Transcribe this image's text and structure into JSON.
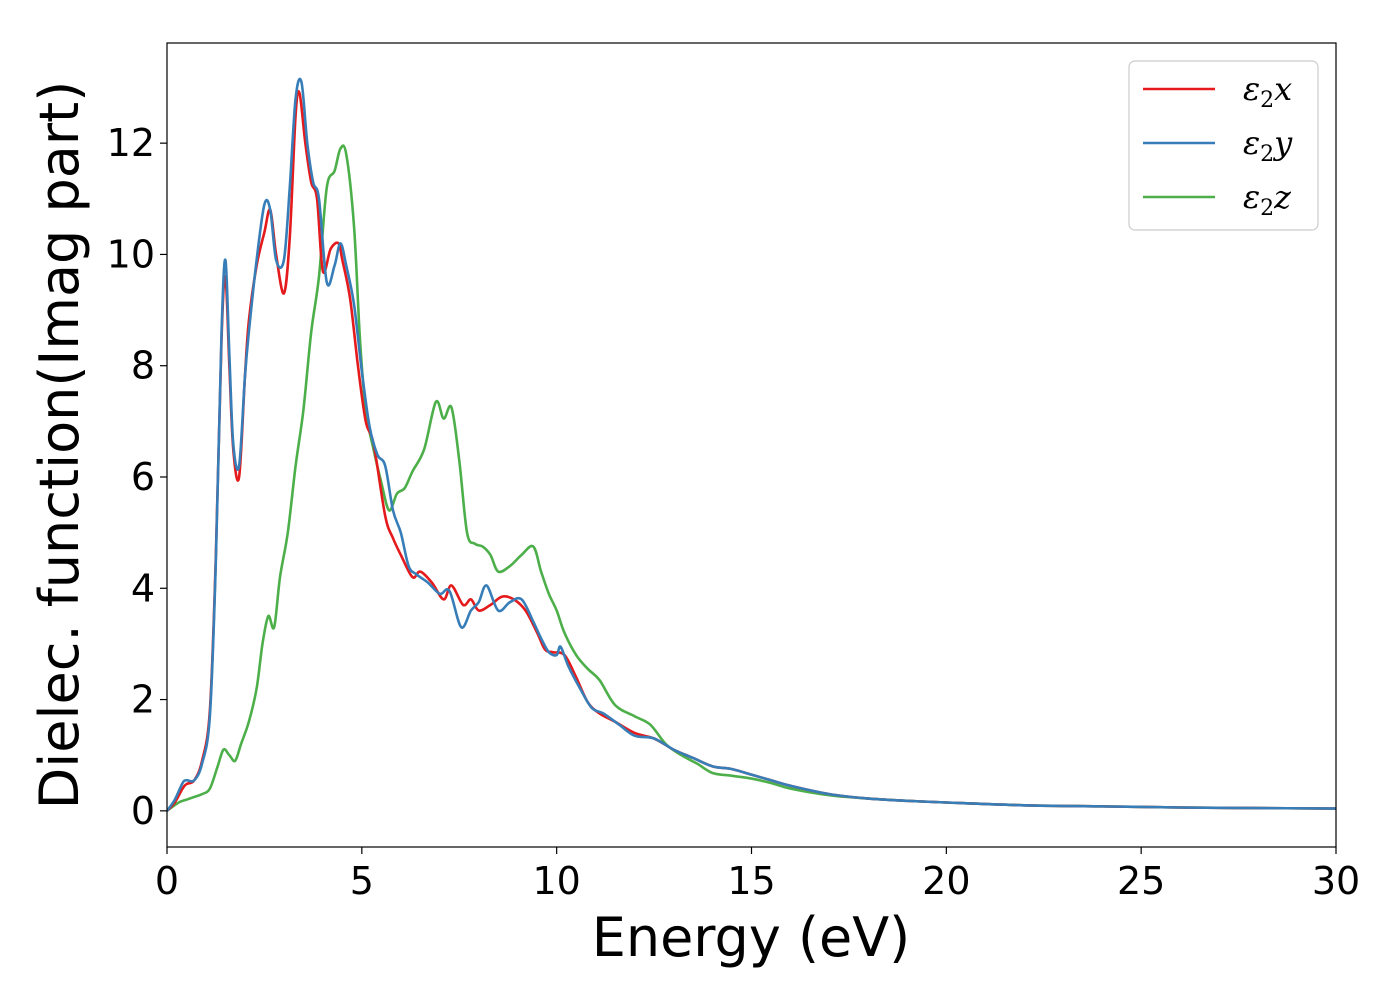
{
  "chart_data": {
    "type": "line",
    "title": "",
    "xlabel": "Energy (eV)",
    "ylabel": "Dielec. function(Imag part)",
    "xlim": [
      0,
      30
    ],
    "ylim": [
      -0.65,
      13.8
    ],
    "xticks": [
      0,
      5,
      10,
      15,
      20,
      25,
      30
    ],
    "xtick_labels": [
      "0",
      "5",
      "10",
      "15",
      "20",
      "25",
      "30"
    ],
    "yticks": [
      0,
      2,
      4,
      6,
      8,
      10,
      12
    ],
    "ytick_labels": [
      "0",
      "2",
      "4",
      "6",
      "8",
      "10",
      "12"
    ],
    "grid": false,
    "legend_position": "top-right",
    "series": [
      {
        "name": "ε2x",
        "legend_symbol": "ε",
        "legend_sub": "2",
        "legend_var": "x",
        "color": "#e41a1c",
        "x": [
          0,
          0.2,
          0.4,
          0.5,
          0.7,
          0.9,
          1.1,
          1.25,
          1.4,
          1.5,
          1.6,
          1.7,
          1.85,
          2.0,
          2.1,
          2.3,
          2.5,
          2.65,
          2.8,
          3.0,
          3.15,
          3.3,
          3.4,
          3.55,
          3.7,
          3.85,
          4.0,
          4.2,
          4.4,
          4.5,
          4.7,
          4.9,
          5.1,
          5.3,
          5.6,
          5.8,
          6.0,
          6.3,
          6.5,
          6.8,
          7.1,
          7.3,
          7.6,
          7.8,
          8.0,
          8.3,
          8.6,
          8.9,
          9.2,
          9.5,
          9.7,
          9.9,
          10.2,
          10.5,
          10.8,
          11.1,
          11.5,
          12.0,
          12.5,
          13.0,
          13.5,
          14.0,
          14.5,
          15.0,
          15.5,
          16.0,
          17.0,
          18.0,
          19.0,
          20.0,
          22.0,
          24.0,
          26.0,
          28.0,
          30.0
        ],
        "values": [
          0.0,
          0.15,
          0.4,
          0.48,
          0.55,
          0.9,
          1.8,
          4.5,
          8.5,
          9.6,
          8.0,
          6.5,
          6.0,
          7.8,
          8.8,
          9.8,
          10.4,
          10.8,
          10.0,
          9.3,
          10.3,
          12.5,
          12.9,
          12.0,
          11.3,
          11.0,
          9.7,
          10.1,
          10.2,
          9.9,
          9.2,
          8.0,
          7.0,
          6.6,
          5.3,
          4.9,
          4.6,
          4.2,
          4.3,
          4.1,
          3.8,
          4.05,
          3.7,
          3.8,
          3.6,
          3.7,
          3.85,
          3.8,
          3.6,
          3.2,
          2.9,
          2.85,
          2.8,
          2.4,
          1.95,
          1.75,
          1.6,
          1.4,
          1.3,
          1.1,
          0.95,
          0.8,
          0.75,
          0.65,
          0.55,
          0.45,
          0.3,
          0.22,
          0.18,
          0.15,
          0.1,
          0.08,
          0.06,
          0.05,
          0.04
        ]
      },
      {
        "name": "ε2y",
        "legend_symbol": "ε",
        "legend_sub": "2",
        "legend_var": "y",
        "color": "#377eb8",
        "x": [
          0,
          0.2,
          0.4,
          0.5,
          0.7,
          0.9,
          1.1,
          1.25,
          1.4,
          1.5,
          1.6,
          1.7,
          1.85,
          2.0,
          2.1,
          2.3,
          2.5,
          2.65,
          2.8,
          3.0,
          3.15,
          3.3,
          3.45,
          3.6,
          3.75,
          3.9,
          4.1,
          4.3,
          4.45,
          4.6,
          4.8,
          5.0,
          5.2,
          5.4,
          5.6,
          5.8,
          6.0,
          6.2,
          6.4,
          6.7,
          7.0,
          7.25,
          7.55,
          7.8,
          8.0,
          8.2,
          8.5,
          8.8,
          9.1,
          9.4,
          9.6,
          9.8,
          10.0,
          10.1,
          10.3,
          10.6,
          10.9,
          11.2,
          11.6,
          12.0,
          12.5,
          13.0,
          13.5,
          14.0,
          14.5,
          15.0,
          15.5,
          16.0,
          17.0,
          18.0,
          19.0,
          20.0,
          22.0,
          24.0,
          26.0,
          28.0,
          30.0
        ],
        "values": [
          0.0,
          0.2,
          0.5,
          0.55,
          0.55,
          0.85,
          1.7,
          4.4,
          8.6,
          9.9,
          8.2,
          6.6,
          6.2,
          7.8,
          8.6,
          9.9,
          10.9,
          10.8,
          9.9,
          9.9,
          11.2,
          12.8,
          13.1,
          12.0,
          11.3,
          11.0,
          9.5,
          9.8,
          10.2,
          9.8,
          9.1,
          7.9,
          6.9,
          6.4,
          6.2,
          5.4,
          5.0,
          4.4,
          4.25,
          4.1,
          3.9,
          3.95,
          3.3,
          3.6,
          3.75,
          4.05,
          3.6,
          3.75,
          3.8,
          3.4,
          3.1,
          2.85,
          2.8,
          2.95,
          2.6,
          2.2,
          1.85,
          1.75,
          1.55,
          1.35,
          1.3,
          1.1,
          0.95,
          0.8,
          0.75,
          0.65,
          0.55,
          0.45,
          0.3,
          0.22,
          0.18,
          0.15,
          0.1,
          0.08,
          0.06,
          0.05,
          0.04
        ]
      },
      {
        "name": "ε2z",
        "legend_symbol": "ε",
        "legend_sub": "2",
        "legend_var": "z",
        "color": "#4daf4a",
        "x": [
          0,
          0.3,
          0.5,
          0.7,
          0.9,
          1.1,
          1.3,
          1.45,
          1.6,
          1.75,
          1.9,
          2.1,
          2.3,
          2.45,
          2.6,
          2.75,
          2.9,
          3.1,
          3.3,
          3.5,
          3.7,
          3.9,
          4.1,
          4.3,
          4.45,
          4.6,
          4.8,
          4.95,
          5.1,
          5.3,
          5.5,
          5.7,
          5.9,
          6.1,
          6.3,
          6.6,
          6.9,
          7.1,
          7.3,
          7.5,
          7.7,
          7.9,
          8.1,
          8.3,
          8.5,
          8.8,
          9.1,
          9.4,
          9.6,
          9.8,
          10.0,
          10.2,
          10.5,
          10.8,
          11.1,
          11.5,
          12.0,
          12.4,
          12.8,
          13.2,
          13.6,
          14.0,
          14.5,
          15.0,
          15.5,
          16.0,
          17.0,
          18.0,
          19.0,
          20.0,
          22.0,
          24.0,
          26.0,
          28.0,
          30.0
        ],
        "values": [
          0.0,
          0.15,
          0.2,
          0.25,
          0.3,
          0.4,
          0.8,
          1.1,
          1.0,
          0.9,
          1.2,
          1.6,
          2.2,
          3.0,
          3.5,
          3.3,
          4.2,
          5.0,
          6.2,
          7.2,
          8.6,
          9.6,
          11.2,
          11.5,
          11.9,
          11.8,
          10.5,
          8.5,
          7.2,
          6.5,
          5.9,
          5.4,
          5.7,
          5.8,
          6.1,
          6.5,
          7.35,
          7.05,
          7.25,
          6.3,
          5.0,
          4.8,
          4.75,
          4.6,
          4.3,
          4.4,
          4.6,
          4.75,
          4.3,
          3.9,
          3.6,
          3.2,
          2.8,
          2.55,
          2.35,
          1.9,
          1.7,
          1.55,
          1.2,
          1.0,
          0.85,
          0.68,
          0.63,
          0.58,
          0.5,
          0.4,
          0.28,
          0.22,
          0.18,
          0.15,
          0.1,
          0.08,
          0.06,
          0.05,
          0.04
        ]
      }
    ]
  }
}
